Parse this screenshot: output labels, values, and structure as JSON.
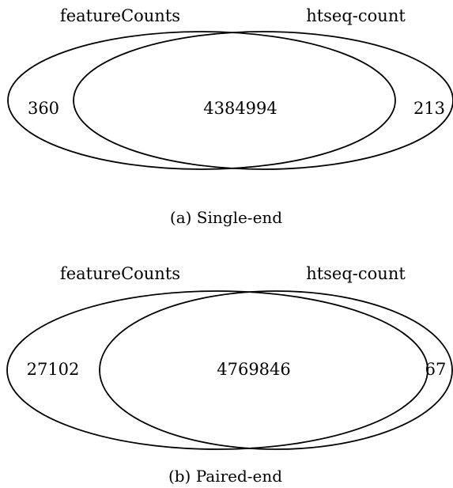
{
  "panels": [
    {
      "left_set_label": "featureCounts",
      "right_set_label": "htseq-count",
      "left_only": "360",
      "overlap": "4384994",
      "right_only": "213",
      "caption": "(a) Single-end"
    },
    {
      "left_set_label": "featureCounts",
      "right_set_label": "htseq-count",
      "left_only": "27102",
      "overlap": "4769846",
      "right_only": "67",
      "caption": "(b) Paired-end"
    }
  ],
  "colors": {
    "stroke": "#000000",
    "text": "#000000",
    "background": "#ffffff"
  }
}
